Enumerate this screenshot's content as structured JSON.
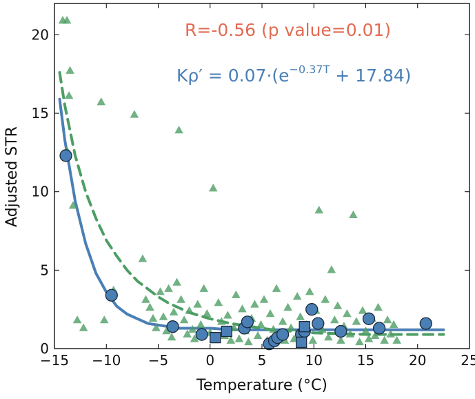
{
  "chart_data": {
    "type": "scatter",
    "title": "",
    "xlabel": "Temperature (°C)",
    "ylabel": "Adjusted STR",
    "xlim": [
      -15,
      25
    ],
    "ylim": [
      0,
      22
    ],
    "xticks": [
      -15,
      -10,
      -5,
      0,
      5,
      10,
      15,
      20,
      25
    ],
    "yticks": [
      0,
      5,
      10,
      15,
      20
    ],
    "grid": false,
    "colors": {
      "green": "#4d9e64",
      "blue": "#4a7fb6",
      "red": "#e26b52",
      "edge": "#1a2a3a"
    },
    "annotations": {
      "correlation": "R=-0.56 (p value=0.01)",
      "formula_lhs": "Kρ′ = 0.07·(e",
      "formula_exp": "−0.37T",
      "formula_rhs": " + 17.84)"
    },
    "series": [
      {
        "marker": "triangle",
        "color": "#4d9e64",
        "points": [
          [
            -14.2,
            20.9
          ],
          [
            -13.8,
            20.9
          ],
          [
            -13.5,
            17.7
          ],
          [
            -13.6,
            16.1
          ],
          [
            -13.8,
            12.6
          ],
          [
            -13.2,
            9.1
          ],
          [
            -12.8,
            1.8
          ],
          [
            -12.2,
            1.3
          ],
          [
            -10.5,
            15.7
          ],
          [
            -10.2,
            1.8
          ],
          [
            -9.3,
            3.7
          ],
          [
            -7.3,
            14.9
          ],
          [
            -6.5,
            5.7
          ],
          [
            -6.2,
            3.1
          ],
          [
            -5.8,
            2.6
          ],
          [
            -5.5,
            1.9
          ],
          [
            -5.2,
            1.3
          ],
          [
            -4.8,
            3.6
          ],
          [
            -4.5,
            2.0
          ],
          [
            -4.2,
            1.1
          ],
          [
            -4.0,
            3.8
          ],
          [
            -3.7,
            0.7
          ],
          [
            -3.5,
            2.3
          ],
          [
            -3.2,
            4.2
          ],
          [
            -3.0,
            13.9
          ],
          [
            -2.8,
            3.1
          ],
          [
            -2.5,
            1.8
          ],
          [
            -2.2,
            0.9
          ],
          [
            -2.0,
            2.4
          ],
          [
            -1.7,
            1.2
          ],
          [
            -1.5,
            0.6
          ],
          [
            -1.2,
            2.8
          ],
          [
            -0.9,
            1.5
          ],
          [
            -0.6,
            3.8
          ],
          [
            -0.3,
            2.2
          ],
          [
            0.0,
            1.0
          ],
          [
            0.3,
            10.2
          ],
          [
            0.5,
            0.6
          ],
          [
            0.8,
            2.9
          ],
          [
            1.1,
            1.7
          ],
          [
            1.4,
            0.8
          ],
          [
            1.7,
            2.1
          ],
          [
            2.0,
            0.5
          ],
          [
            2.3,
            1.3
          ],
          [
            2.5,
            3.4
          ],
          [
            2.8,
            0.6
          ],
          [
            3.1,
            2.5
          ],
          [
            3.4,
            1.1
          ],
          [
            3.7,
            0.4
          ],
          [
            4.0,
            1.9
          ],
          [
            4.3,
            2.8
          ],
          [
            4.6,
            0.8
          ],
          [
            4.9,
            1.5
          ],
          [
            5.2,
            3.1
          ],
          [
            5.5,
            0.5
          ],
          [
            5.8,
            2.2
          ],
          [
            6.1,
            1.2
          ],
          [
            6.4,
            3.8
          ],
          [
            6.7,
            0.8
          ],
          [
            7.0,
            1.7
          ],
          [
            7.2,
            0.5
          ],
          [
            7.5,
            2.6
          ],
          [
            7.8,
            1.3
          ],
          [
            8.1,
            0.6
          ],
          [
            8.4,
            3.3
          ],
          [
            8.7,
            2.0
          ],
          [
            9.0,
            0.9
          ],
          [
            9.3,
            1.5
          ],
          [
            9.6,
            3.6
          ],
          [
            9.9,
            0.5
          ],
          [
            10.2,
            2.4
          ],
          [
            10.5,
            8.8
          ],
          [
            10.8,
            1.2
          ],
          [
            11.1,
            3.1
          ],
          [
            11.4,
            0.7
          ],
          [
            11.7,
            5.0
          ],
          [
            12.0,
            1.8
          ],
          [
            12.3,
            2.7
          ],
          [
            12.6,
            0.5
          ],
          [
            12.9,
            1.4
          ],
          [
            13.2,
            2.2
          ],
          [
            13.5,
            0.9
          ],
          [
            13.8,
            8.5
          ],
          [
            14.1,
            1.7
          ],
          [
            14.4,
            0.4
          ],
          [
            14.7,
            2.4
          ],
          [
            15.0,
            1.1
          ],
          [
            15.3,
            0.6
          ],
          [
            15.6,
            1.9
          ],
          [
            15.9,
            0.8
          ],
          [
            16.2,
            2.6
          ],
          [
            16.5,
            1.3
          ],
          [
            16.8,
            0.5
          ],
          [
            17.1,
            1.8
          ],
          [
            17.4,
            0.9
          ],
          [
            17.7,
            1.5
          ],
          [
            18.0,
            0.5
          ]
        ]
      },
      {
        "marker": "circle",
        "color": "#4a7fb6",
        "points": [
          [
            -13.9,
            12.3
          ],
          [
            -9.5,
            3.4
          ],
          [
            -3.6,
            1.4
          ],
          [
            -0.8,
            0.9
          ],
          [
            3.3,
            1.3
          ],
          [
            3.6,
            1.7
          ],
          [
            5.7,
            0.3
          ],
          [
            6.2,
            0.5
          ],
          [
            6.5,
            0.7
          ],
          [
            7.0,
            0.9
          ],
          [
            8.8,
            0.9
          ],
          [
            9.1,
            1.1
          ],
          [
            9.8,
            2.5
          ],
          [
            10.4,
            1.6
          ],
          [
            12.6,
            1.1
          ],
          [
            15.3,
            1.9
          ],
          [
            16.3,
            1.3
          ],
          [
            20.8,
            1.6
          ]
        ]
      },
      {
        "marker": "square",
        "color": "#4a7fb6",
        "points": [
          [
            0.5,
            0.7
          ],
          [
            1.6,
            1.1
          ],
          [
            8.8,
            0.4
          ],
          [
            9.1,
            1.4
          ]
        ]
      }
    ],
    "curves": [
      {
        "style": "solid",
        "color": "#4a7fb6",
        "x": [
          -14.5,
          -14,
          -13,
          -12,
          -11,
          -10,
          -9,
          -8,
          -7,
          -6,
          -5,
          -4,
          -3,
          -2,
          -1,
          0,
          2,
          4,
          6,
          8,
          10,
          15,
          20,
          22.5
        ],
        "y": [
          15.9,
          13.3,
          9.4,
          6.7,
          4.8,
          3.6,
          2.7,
          2.2,
          1.9,
          1.6,
          1.5,
          1.4,
          1.3,
          1.3,
          1.3,
          1.3,
          1.2,
          1.2,
          1.2,
          1.2,
          1.2,
          1.2,
          1.2,
          1.2
        ]
      },
      {
        "style": "dashed",
        "color": "#4d9e64",
        "x": [
          -14.5,
          -14,
          -13,
          -12,
          -11,
          -10,
          -9,
          -8,
          -7,
          -6,
          -5,
          -4,
          -3,
          -2,
          -1,
          0,
          2,
          4,
          6,
          8,
          10,
          15,
          20,
          22.5
        ],
        "y": [
          17.6,
          15.5,
          12.3,
          10.0,
          8.3,
          6.9,
          5.9,
          5.0,
          4.3,
          3.8,
          3.3,
          2.9,
          2.6,
          2.3,
          2.1,
          1.9,
          1.6,
          1.4,
          1.2,
          1.1,
          1.0,
          0.9,
          0.9,
          0.9
        ]
      }
    ]
  }
}
